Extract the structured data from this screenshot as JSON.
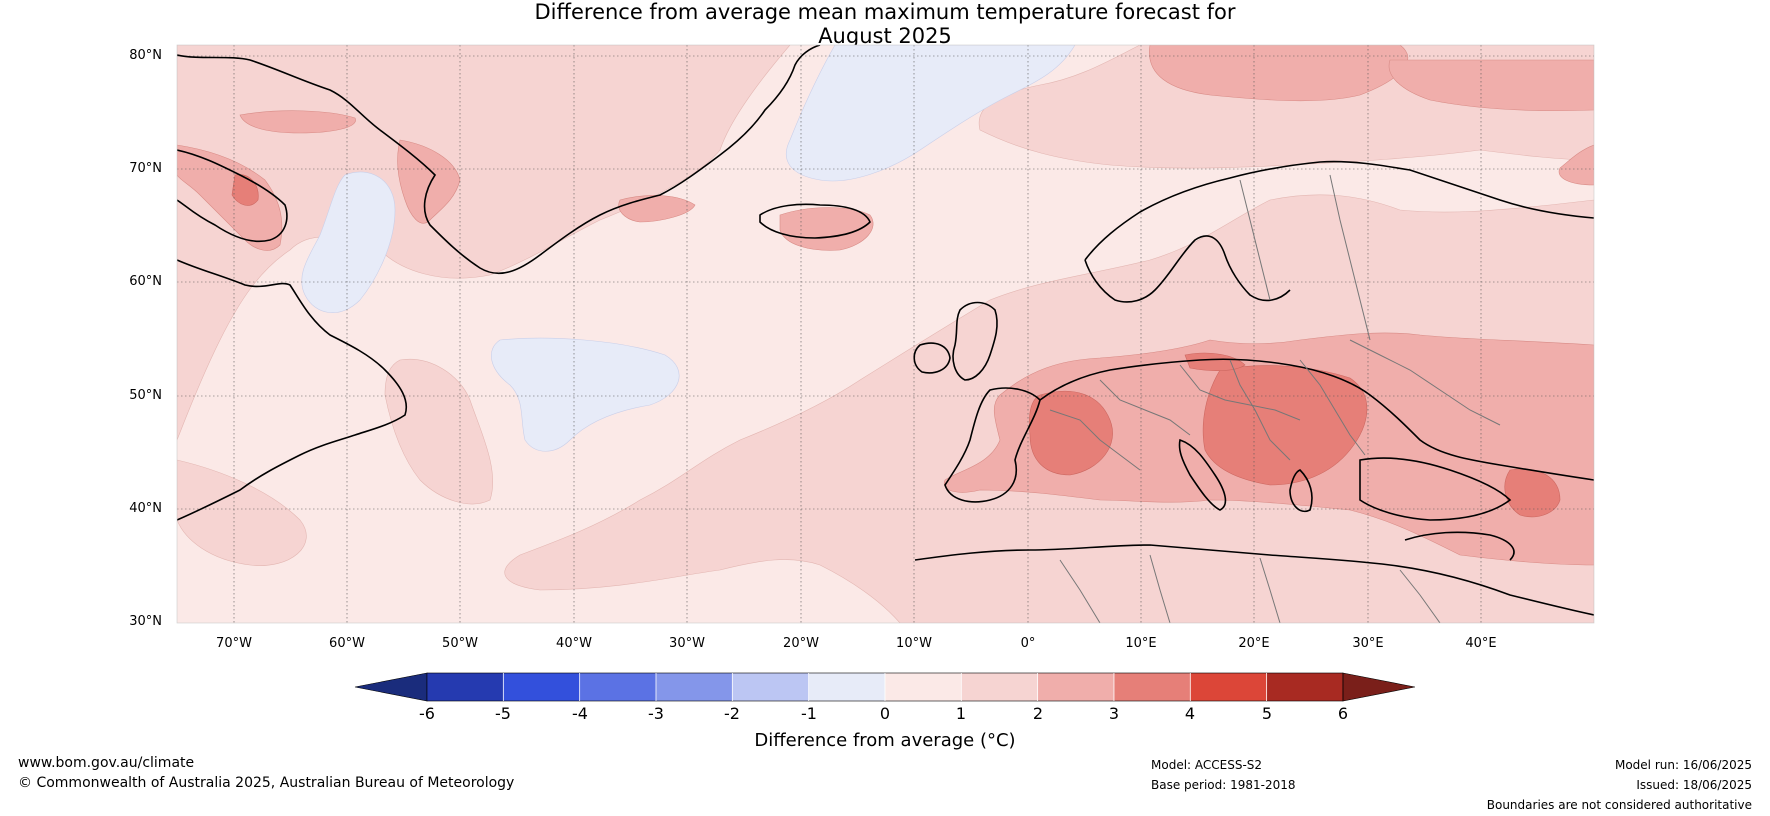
{
  "title": {
    "line1": "Difference from average mean maximum temperature forecast for",
    "line2": "August 2025"
  },
  "map": {
    "lat_labels": [
      "80°N",
      "70°N",
      "60°N",
      "50°N",
      "40°N",
      "30°N"
    ],
    "lon_labels": [
      "70°W",
      "60°W",
      "50°W",
      "40°W",
      "30°W",
      "20°W",
      "10°W",
      "0°",
      "10°E",
      "20°E",
      "30°E",
      "40°E"
    ],
    "extent": {
      "lon": [
        -75,
        50
      ],
      "lat": [
        30,
        81
      ]
    },
    "colors": {
      "class_0_1": "#fbe9e7",
      "class_1_2": "#f6d4d2",
      "class_2_3": "#f0aeab",
      "class_3_4": "#e67f78",
      "class_m1_0": "#e7ebf8",
      "coast": "#000000",
      "border": "#777777"
    }
  },
  "colorbar": {
    "ticks": [
      "-6",
      "-5",
      "-4",
      "-3",
      "-2",
      "-1",
      "0",
      "1",
      "2",
      "3",
      "4",
      "5",
      "6"
    ],
    "colors": [
      "#1a2c7c",
      "#253ab0",
      "#3350dc",
      "#5b72e4",
      "#8496ea",
      "#bcc6f3",
      "#e7ebf8",
      "#fbe9e7",
      "#f6d4d2",
      "#f0aeab",
      "#e67f78",
      "#dc4638",
      "#a82a22",
      "#7a1f1a"
    ],
    "label": "Difference from average (°C)"
  },
  "footer": {
    "website": "www.bom.gov.au/climate",
    "copyright": "© Commonwealth of Australia 2025, Australian Bureau of Meteorology",
    "model": "Model: ACCESS-S2",
    "base_period": "Base period: 1981-2018",
    "model_run": "Model run: 16/06/2025",
    "issued": "Issued: 18/06/2025",
    "disclaimer": "Boundaries are not considered authoritative"
  }
}
